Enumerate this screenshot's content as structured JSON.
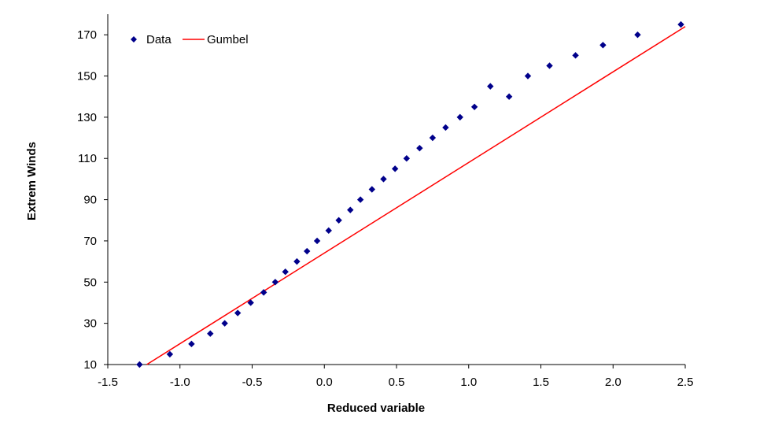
{
  "chart_data": {
    "type": "scatter",
    "title": "",
    "xlabel": "Reduced variable",
    "ylabel": "Extrem Winds",
    "xlim": [
      -1.5,
      2.5
    ],
    "ylim": [
      10,
      180
    ],
    "x_ticks": [
      -1.5,
      -1.0,
      -0.5,
      0.0,
      0.5,
      1.0,
      1.5,
      2.0,
      2.5
    ],
    "x_tick_labels": [
      "-1.5",
      "-1.0",
      "-0.5",
      "0.0",
      "0.5",
      "1.0",
      "1.5",
      "2.0",
      "2.5"
    ],
    "y_ticks": [
      10,
      30,
      50,
      70,
      90,
      110,
      130,
      150,
      170
    ],
    "y_tick_labels": [
      "10",
      "30",
      "50",
      "70",
      "90",
      "110",
      "130",
      "150",
      "170"
    ],
    "grid": false,
    "legend_position": "top-left",
    "series": [
      {
        "name": "Data",
        "kind": "scatter",
        "marker": "diamond",
        "color": "#00008B",
        "x": [
          -1.28,
          -1.07,
          -0.92,
          -0.79,
          -0.69,
          -0.6,
          -0.51,
          -0.42,
          -0.34,
          -0.27,
          -0.19,
          -0.12,
          -0.05,
          0.03,
          0.1,
          0.18,
          0.25,
          0.33,
          0.41,
          0.49,
          0.57,
          0.66,
          0.75,
          0.84,
          0.94,
          1.04,
          1.15,
          1.28,
          1.41,
          1.56,
          1.74,
          1.93,
          2.17,
          2.47
        ],
        "y": [
          10,
          15,
          20,
          25,
          30,
          35,
          40,
          45,
          50,
          55,
          60,
          65,
          70,
          75,
          80,
          85,
          90,
          95,
          100,
          105,
          110,
          115,
          120,
          125,
          130,
          135,
          145,
          140,
          150,
          155,
          160,
          165,
          170,
          175
        ]
      },
      {
        "name": "Gumbel",
        "kind": "line",
        "color": "#FF0000",
        "x": [
          -1.23,
          2.5
        ],
        "y": [
          10,
          174
        ]
      }
    ]
  }
}
